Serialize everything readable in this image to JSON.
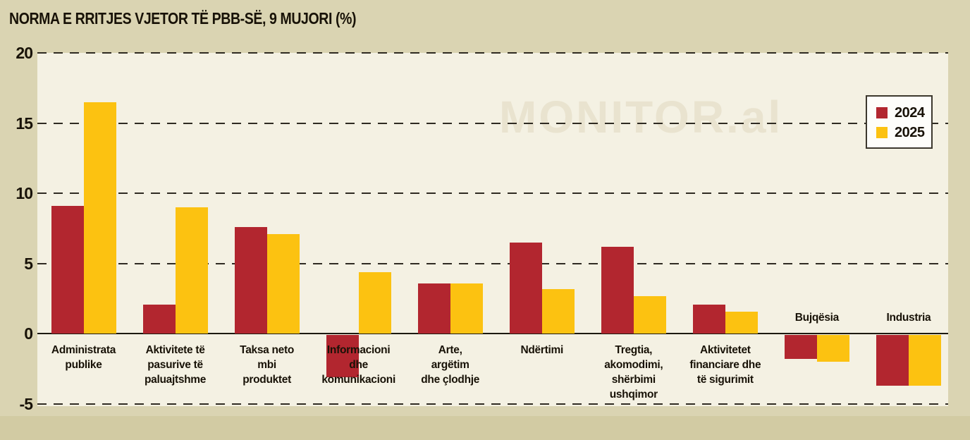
{
  "chart_data": {
    "type": "bar",
    "title": "NORMA E RRITJES VJETOR TË PBB-SË, 9 MUJORI (%)",
    "watermark": "MONITOR.al",
    "categories": [
      "Administrata\npublike",
      "Aktivitete të\npasurive të\npaluajtshme",
      "Taksa neto\nmbi\nproduktet",
      "Informacioni\ndhe\nkomunikacioni",
      "Arte,\nargëtim\ndhe çlodhje",
      "Ndërtimi",
      "Tregtia,\nakomodimi,\nshërbimi\nushqimor",
      "Aktivitetet\nfinanciare dhe\ntë sigurimit",
      "Bujqësia",
      "Industria"
    ],
    "series": [
      {
        "name": "2024",
        "color": "#b2262f",
        "values": [
          9.1,
          2.1,
          7.6,
          -3.1,
          3.6,
          6.5,
          6.2,
          2.1,
          -1.8,
          -3.7
        ]
      },
      {
        "name": "2025",
        "color": "#fcc211",
        "values": [
          16.5,
          9.0,
          7.1,
          4.4,
          3.6,
          3.2,
          2.7,
          1.6,
          -2.0,
          -3.7
        ]
      }
    ],
    "ylim": [
      -5,
      20
    ],
    "yticks": [
      20,
      15,
      10,
      5,
      0,
      -5
    ],
    "grid": "horizontal-dashed",
    "zero_line": "solid",
    "legend_position": "top-right",
    "colors": {
      "background": "#dad4b2",
      "plot_background": "#f4f1e3",
      "text": "#181207"
    }
  }
}
